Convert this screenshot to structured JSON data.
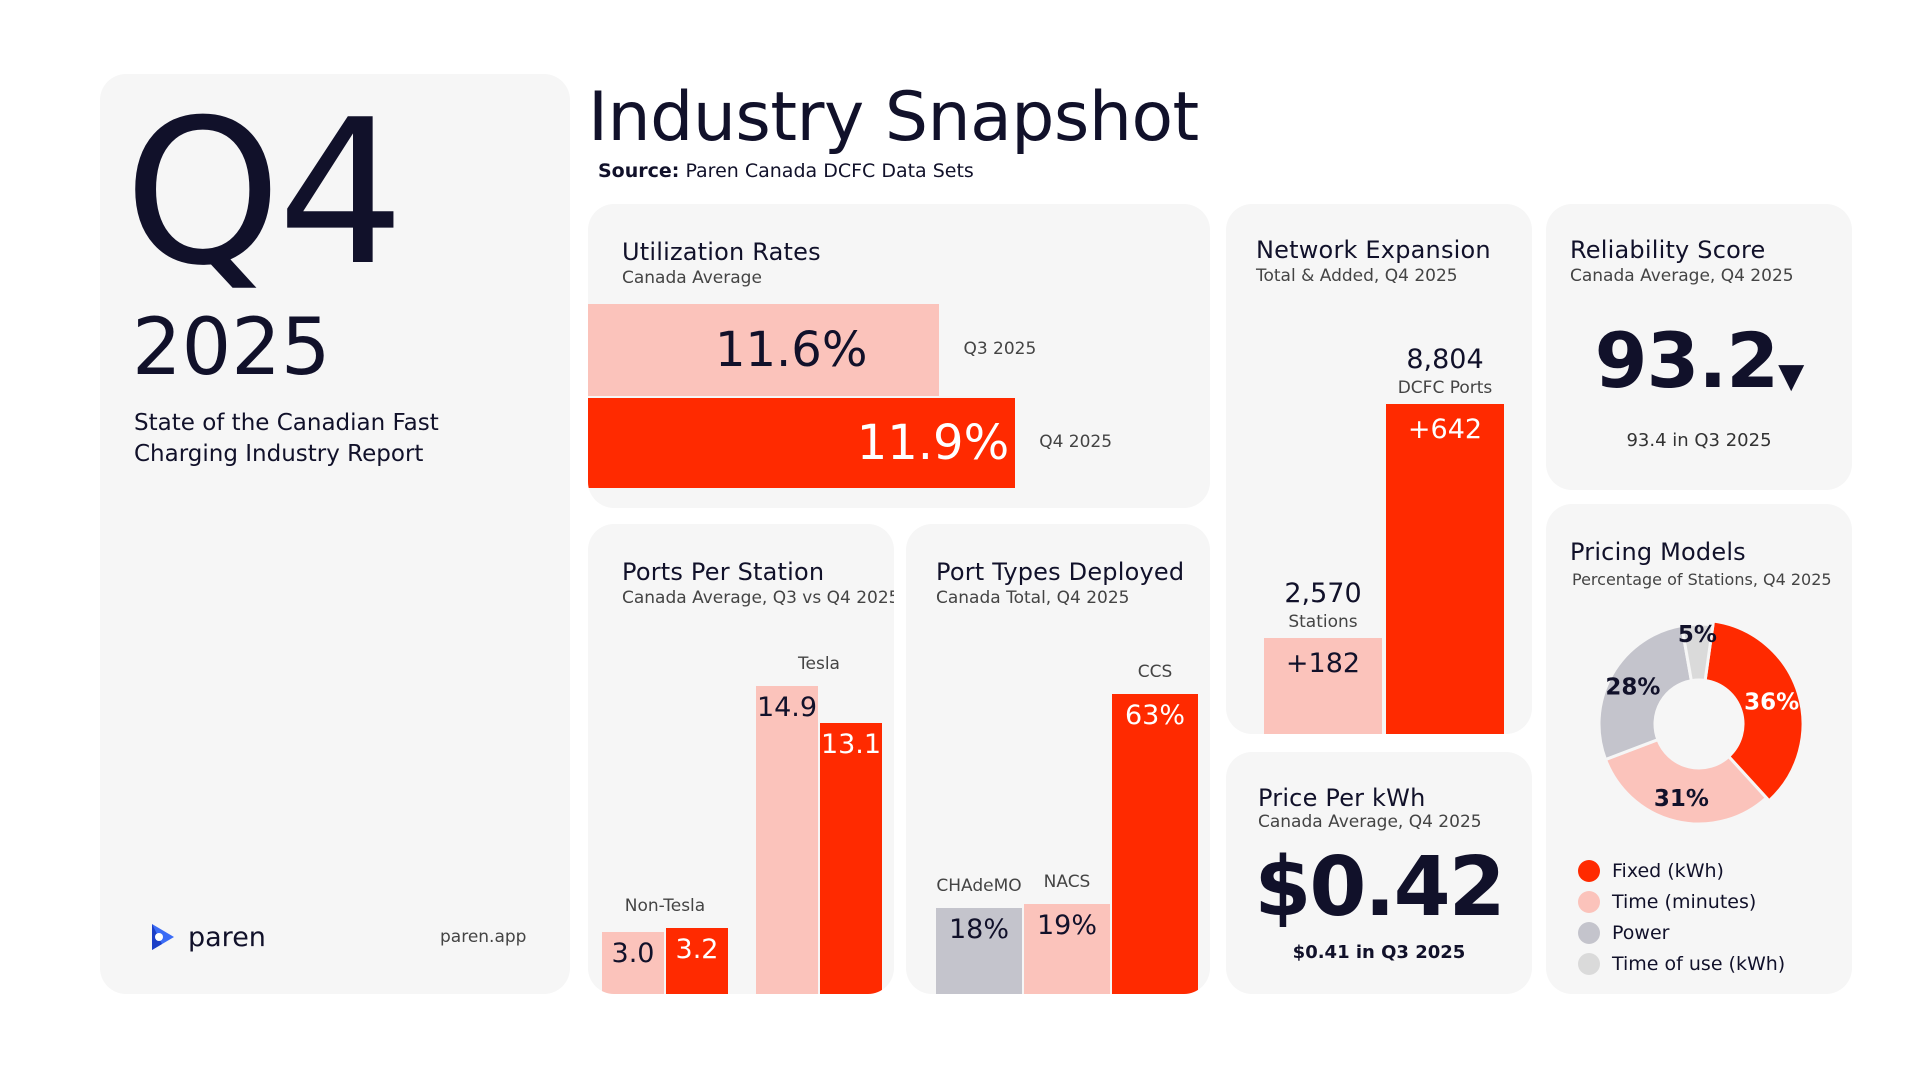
{
  "cover": {
    "quarter": "Q4",
    "year": "2025",
    "description": "State of the Canadian Fast Charging Industry Report",
    "brand": "paren",
    "site": "paren.app"
  },
  "header": {
    "title": "Industry Snapshot",
    "source_label": "Source:",
    "source_text": "Paren Canada DCFC Data Sets"
  },
  "colors": {
    "red": "#ff2a00",
    "pink": "#fbc3bb",
    "gray": "#c4c4cc",
    "lightgray": "#dadada",
    "ink": "#11112a"
  },
  "reliability": {
    "title": "Reliability Score",
    "subtitle": "Canada Average, Q4 2025",
    "value": "93.2",
    "trend": "▼",
    "previous": "93.4 in Q3 2025"
  },
  "price": {
    "title": "Price Per kWh",
    "subtitle": "Canada Average, Q4 2025",
    "value": "$0.42",
    "previous": "$0.41 in Q3 2025"
  },
  "chart_data": [
    {
      "id": "utilization",
      "type": "bar",
      "orientation": "horizontal",
      "title": "Utilization Rates",
      "subtitle": "Canada Average",
      "categories": [
        "Q3 2025",
        "Q4 2025"
      ],
      "values": [
        11.6,
        11.9
      ],
      "labels": [
        "11.6%",
        "11.9%"
      ],
      "colors": [
        "#fbc3bb",
        "#ff2a00"
      ]
    },
    {
      "id": "ports_per_station",
      "type": "bar",
      "title": "Ports Per Station",
      "subtitle": "Canada Average, Q3 vs Q4 2025",
      "categories": [
        "Non-Tesla",
        "Tesla"
      ],
      "series": [
        {
          "name": "Q3 2025",
          "values": [
            3.0,
            14.9
          ],
          "labels": [
            "3.0",
            "14.9"
          ],
          "color": "#fbc3bb"
        },
        {
          "name": "Q4 2025",
          "values": [
            3.2,
            13.1
          ],
          "labels": [
            "3.2",
            "13.1"
          ],
          "color": "#ff2a00"
        }
      ],
      "ylim": [
        0,
        14.9
      ]
    },
    {
      "id": "port_types",
      "type": "bar",
      "title": "Port Types Deployed",
      "subtitle": "Canada Total, Q4 2025",
      "categories": [
        "CHAdeMO",
        "NACS",
        "CCS"
      ],
      "values": [
        18,
        19,
        63
      ],
      "labels": [
        "18%",
        "19%",
        "63%"
      ],
      "colors": [
        "#c4c4cc",
        "#fbc3bb",
        "#ff2a00"
      ],
      "ylim": [
        0,
        63
      ]
    },
    {
      "id": "network_expansion",
      "type": "bar",
      "title": "Network Expansion",
      "subtitle": "Total & Added, Q4 2025",
      "categories": [
        "Stations",
        "DCFC Ports"
      ],
      "totals": [
        2570,
        8804
      ],
      "total_labels": [
        "2,570",
        "8,804"
      ],
      "added": [
        182,
        642
      ],
      "added_labels": [
        "+182",
        "+642"
      ],
      "colors": [
        "#fbc3bb",
        "#ff2a00"
      ],
      "ylim": [
        0,
        8804
      ]
    },
    {
      "id": "pricing_models",
      "type": "pie",
      "title": "Pricing Models",
      "subtitle": "Percentage of Stations, Q4 2025",
      "categories": [
        "Fixed (kWh)",
        "Time (minutes)",
        "Power",
        "Time of use (kWh)"
      ],
      "values": [
        36,
        31,
        28,
        5
      ],
      "labels": [
        "36%",
        "31%",
        "28%",
        "5%"
      ],
      "colors": [
        "#ff2a00",
        "#fbc3bb",
        "#c4c4cc",
        "#dadada"
      ]
    }
  ]
}
